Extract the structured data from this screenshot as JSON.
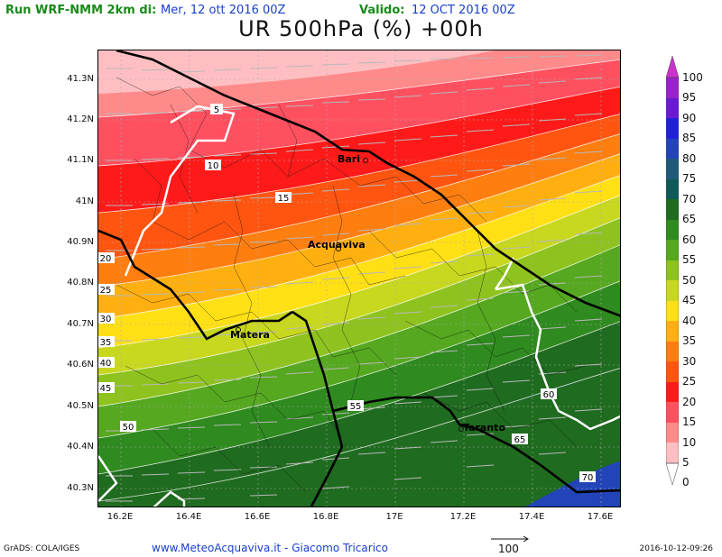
{
  "header": {
    "run_label": "Run WRF-NMM 2km di:",
    "run_value": "Mer, 12 ott 2016 00Z",
    "valid_label": "Valido:",
    "valid_value": "12 OCT 2016 00Z"
  },
  "title": "UR 500hPa (%) +00h",
  "axes": {
    "lat_labels": [
      "41.3N",
      "41.2N",
      "41.1N",
      "41N",
      "40.9N",
      "40.8N",
      "40.7N",
      "40.6N",
      "40.5N",
      "40.4N",
      "40.3N"
    ],
    "lon_labels": [
      "16.2E",
      "16.4E",
      "16.6E",
      "16.8E",
      "17E",
      "17.2E",
      "17.4E",
      "17.6E"
    ]
  },
  "cities": [
    "Bari",
    "Acquaviva",
    "Matera",
    "Taranto"
  ],
  "contour_labels": [
    "5",
    "10",
    "15",
    "20",
    "25",
    "30",
    "35",
    "40",
    "45",
    "50",
    "55",
    "60",
    "65",
    "70"
  ],
  "colorbar": {
    "labels": [
      "100",
      "95",
      "90",
      "85",
      "80",
      "75",
      "70",
      "65",
      "60",
      "55",
      "50",
      "45",
      "40",
      "35",
      "30",
      "25",
      "20",
      "15",
      "10",
      "5",
      "0"
    ],
    "colors": [
      "#cc33cc",
      "#9922cc",
      "#6a1ad6",
      "#2020d8",
      "#2244b8",
      "#1f5a78",
      "#0f5a58",
      "#1f6b1f",
      "#2f8a1f",
      "#55a81f",
      "#8ec31f",
      "#c8d81f",
      "#ffe014",
      "#ffb010",
      "#ff7e10",
      "#ff5510",
      "#ff1a1a",
      "#ff5060",
      "#ff8a8a",
      "#ffbfc2",
      "#ffffff"
    ]
  },
  "footer": {
    "left": "GrADS: COLA/IGES",
    "mid": "www.MeteoAcquaviva.it - Giacomo Tricarico",
    "vector_ref": "100",
    "right": "2016-10-12-09:26"
  }
}
